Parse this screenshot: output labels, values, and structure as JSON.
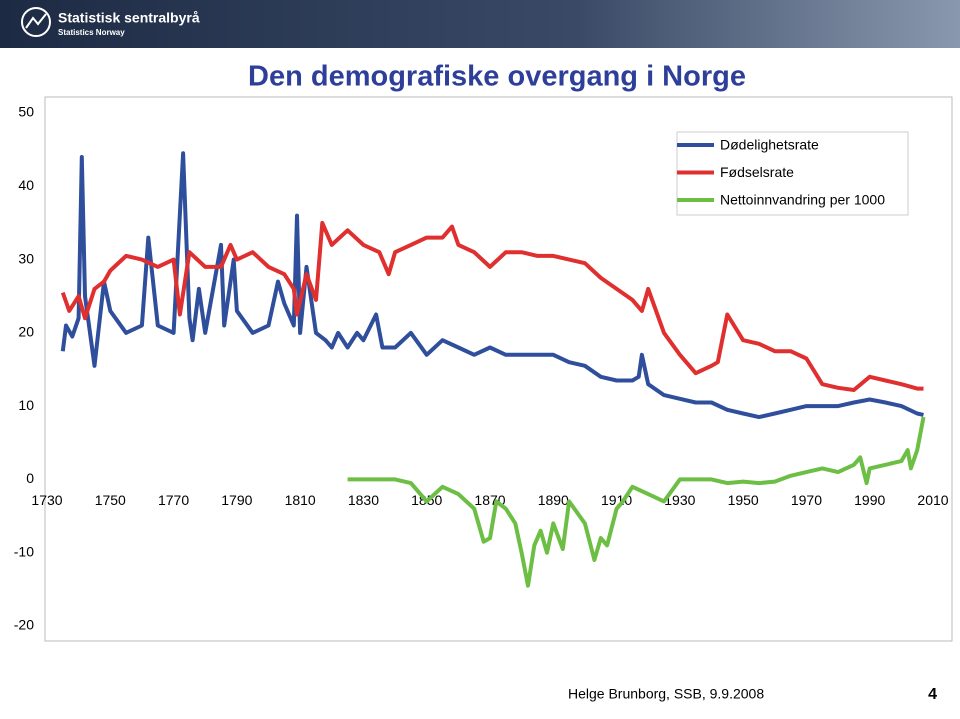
{
  "header": {
    "brand": "Statistisk sentralbyrå",
    "brand_sub": "Statistics Norway"
  },
  "chart_data": {
    "type": "line",
    "title": "Den demografiske overgang i Norge",
    "xlim": [
      1730,
      2010
    ],
    "xticks": [
      1730,
      1750,
      1770,
      1790,
      1810,
      1830,
      1850,
      1870,
      1890,
      1910,
      1930,
      1950,
      1970,
      1990,
      2010
    ],
    "ylim": [
      -20,
      50
    ],
    "yticks": [
      50,
      40,
      30,
      20,
      10,
      0,
      -10,
      -20
    ],
    "series": [
      {
        "name": "Dødelighetsrate",
        "color": "#2f4f9c",
        "x": [
          1735,
          1736,
          1738,
          1740,
          1741,
          1742,
          1745,
          1748,
          1750,
          1755,
          1760,
          1762,
          1765,
          1770,
          1773,
          1775,
          1776,
          1778,
          1780,
          1785,
          1786,
          1789,
          1790,
          1795,
          1800,
          1803,
          1805,
          1808,
          1809,
          1810,
          1812,
          1814,
          1815,
          1818,
          1820,
          1822,
          1825,
          1828,
          1830,
          1834,
          1836,
          1840,
          1845,
          1850,
          1855,
          1860,
          1865,
          1870,
          1875,
          1880,
          1885,
          1890,
          1895,
          1900,
          1905,
          1910,
          1915,
          1917,
          1918,
          1920,
          1925,
          1930,
          1935,
          1940,
          1945,
          1950,
          1955,
          1960,
          1965,
          1970,
          1975,
          1980,
          1985,
          1990,
          1995,
          2000,
          2005,
          2007
        ],
        "values": [
          17.5,
          21,
          19.5,
          22,
          44,
          25,
          15.5,
          27,
          23,
          20,
          21,
          33,
          21,
          20,
          44.5,
          22,
          19,
          26,
          20,
          32,
          21,
          30,
          23,
          20,
          21,
          27,
          24,
          21,
          36,
          20,
          29,
          23,
          20,
          19,
          18,
          20,
          18,
          20,
          19,
          22.5,
          18,
          18,
          20,
          17,
          19,
          18,
          17,
          18,
          17,
          17,
          17,
          17,
          16,
          15.5,
          14,
          13.5,
          13.5,
          14,
          17,
          13,
          11.5,
          11,
          10.5,
          10.5,
          9.5,
          9,
          8.5,
          9,
          9.5,
          10,
          10,
          10,
          10.5,
          10.9,
          10.5,
          10,
          9,
          8.8
        ]
      },
      {
        "name": "Fødselsrate",
        "color": "#e02f2f",
        "x": [
          1735,
          1737,
          1740,
          1742,
          1745,
          1748,
          1750,
          1755,
          1760,
          1765,
          1770,
          1772,
          1775,
          1780,
          1785,
          1788,
          1790,
          1795,
          1800,
          1805,
          1808,
          1809,
          1812,
          1815,
          1817,
          1820,
          1825,
          1830,
          1835,
          1838,
          1840,
          1845,
          1850,
          1855,
          1858,
          1860,
          1865,
          1870,
          1875,
          1880,
          1885,
          1890,
          1895,
          1900,
          1905,
          1910,
          1915,
          1918,
          1920,
          1925,
          1930,
          1935,
          1940,
          1942,
          1945,
          1950,
          1955,
          1960,
          1965,
          1970,
          1975,
          1980,
          1985,
          1990,
          1995,
          2000,
          2005,
          2007
        ],
        "values": [
          25.5,
          23,
          25,
          22,
          26,
          27,
          28.5,
          30.5,
          30,
          29,
          30,
          22.5,
          31,
          29,
          29,
          32,
          30,
          31,
          29,
          28,
          26,
          22.5,
          28,
          24.5,
          35,
          32,
          34,
          32,
          31,
          28,
          31,
          32,
          33,
          33,
          34.5,
          32,
          31,
          29,
          31,
          31,
          30.5,
          30.5,
          30,
          29.5,
          27.5,
          26,
          24.5,
          23,
          26,
          20,
          17,
          14.5,
          15.5,
          16,
          22.5,
          19,
          18.5,
          17.5,
          17.5,
          16.5,
          13,
          12.5,
          12.2,
          14,
          13.5,
          13,
          12.4,
          12.4
        ]
      },
      {
        "name": "Nettoinnvandring per 1000",
        "color": "#6cbf44",
        "x": [
          1825,
          1840,
          1845,
          1850,
          1855,
          1860,
          1865,
          1868,
          1870,
          1872,
          1875,
          1878,
          1880,
          1882,
          1884,
          1886,
          1888,
          1890,
          1893,
          1895,
          1900,
          1903,
          1905,
          1907,
          1910,
          1912,
          1915,
          1920,
          1925,
          1930,
          1935,
          1940,
          1945,
          1950,
          1955,
          1960,
          1965,
          1970,
          1975,
          1980,
          1985,
          1987,
          1989,
          1990,
          1995,
          2000,
          2002,
          2003,
          2005,
          2007
        ],
        "values": [
          0,
          0,
          -0.5,
          -3,
          -1,
          -2,
          -4,
          -8.5,
          -8,
          -3,
          -4,
          -6,
          -10,
          -14.5,
          -9,
          -7,
          -10,
          -6,
          -9.5,
          -3,
          -6,
          -11,
          -8,
          -9,
          -4,
          -3,
          -1,
          -2,
          -3,
          0,
          0,
          0,
          -0.5,
          -0.3,
          -0.5,
          -0.3,
          0.5,
          1,
          1.5,
          1,
          2,
          3,
          -0.5,
          1.5,
          2,
          2.5,
          4,
          1.5,
          4,
          8.5
        ]
      }
    ]
  },
  "footer": {
    "author": "Helge Brunborg, SSB, 9.9.2008",
    "page": "4"
  }
}
